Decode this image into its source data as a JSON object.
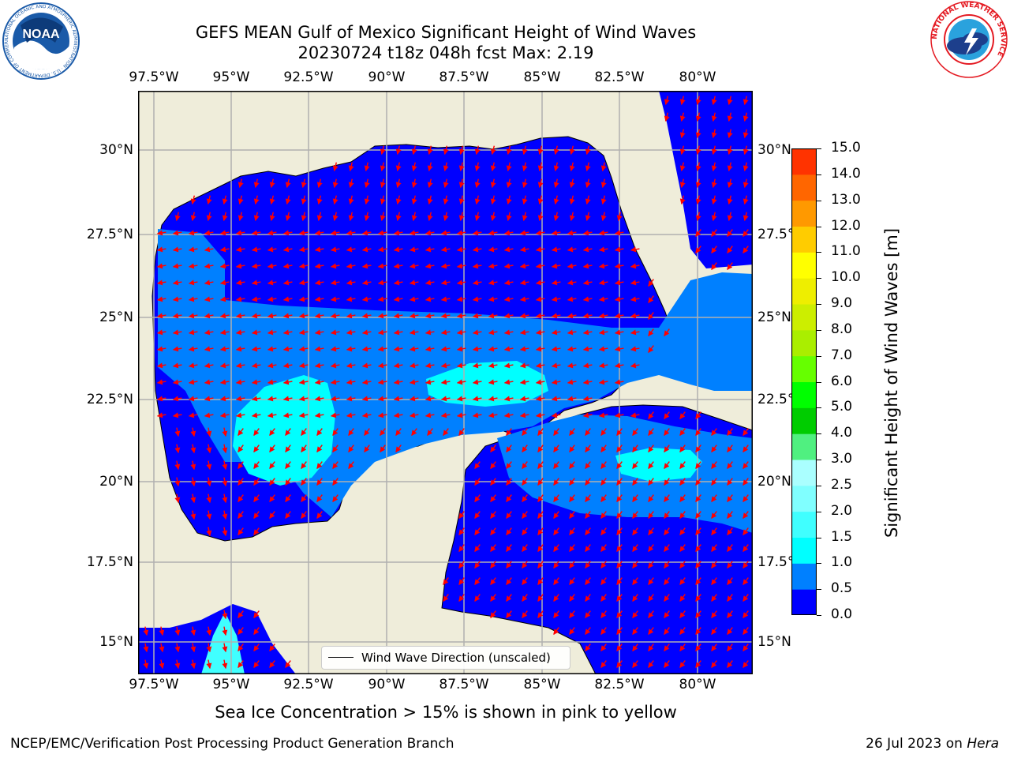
{
  "title_line1": "GEFS MEAN Gulf of Mexico Significant Height of Wind Waves",
  "title_line2": "20230724 t18z 048h fcst   Max: 2.19",
  "noaa_logo_text": "NOAA",
  "noaa_ring_text": "NATIONAL OCEANIC AND ATMOSPHERIC ADMINISTRATION · U.S. DEPARTMENT OF COMMERCE",
  "nws_ring_text": "NATIONAL WEATHER SERVICE",
  "legend_label": "Wind Wave Direction (unscaled)",
  "sea_ice_note": "Sea Ice Concentration > 15% is shown in pink to yellow",
  "footer_left": "NCEP/EMC/Verification Post Processing Product Generation Branch",
  "footer_date": "26 Jul 2023 on ",
  "footer_host": "Hera",
  "colors": {
    "land": "#efedda",
    "coast": "#000000",
    "grid": "#b0b0b0",
    "arrow": "#ff0000",
    "noaa_blue": "#1a5aa8",
    "nws_red": "#e41b23"
  },
  "chart_data": {
    "type": "heatmap",
    "projection": "equirectangular map",
    "lon_ticks": [
      "97.5°W",
      "95°W",
      "92.5°W",
      "90°W",
      "87.5°W",
      "85°W",
      "82.5°W",
      "80°W"
    ],
    "lon_values": [
      -97.5,
      -95,
      -92.5,
      -90,
      -87.5,
      -85,
      -82.5,
      -80
    ],
    "lat_ticks": [
      "30°N",
      "27.5°N",
      "25°N",
      "22.5°N",
      "20°N",
      "17.5°N",
      "15°N"
    ],
    "lat_values": [
      30,
      27.5,
      25,
      22.5,
      20,
      17.5,
      15
    ],
    "xlim": [
      -98,
      -78
    ],
    "ylim": [
      14,
      31.8
    ],
    "grid": true,
    "colorbar": {
      "label": "Significant Height of Wind Waves [m]",
      "ticks": [
        "0.0",
        "0.5",
        "1.0",
        "1.5",
        "2.0",
        "2.5",
        "3.0",
        "4.0",
        "5.0",
        "6.0",
        "7.0",
        "8.0",
        "9.0",
        "10.0",
        "11.0",
        "12.0",
        "13.0",
        "14.0",
        "15.0"
      ],
      "colors": [
        "#0000ff",
        "#0080ff",
        "#00ffff",
        "#40ffff",
        "#80ffff",
        "#aaffff",
        "#50f080",
        "#00cc00",
        "#00ff00",
        "#66ff00",
        "#aaee00",
        "#ccee00",
        "#eeee00",
        "#ffff00",
        "#ffcc00",
        "#ff9900",
        "#ff6600",
        "#ff3300",
        "#ff0000"
      ]
    },
    "wave_height_regions": [
      {
        "label": "0.0–0.5",
        "description": "northern and coastal Gulf, western Caribbean"
      },
      {
        "label": "0.5–1.0",
        "description": "central Gulf band near 24–25°N, eastern Caribbean"
      },
      {
        "label": "1.0–1.5",
        "description": "southwest Gulf (~94°W 22°N), Yucatan Channel, Caribbean (~81°W 20.5°N)"
      }
    ],
    "max_value": 2.19
  }
}
